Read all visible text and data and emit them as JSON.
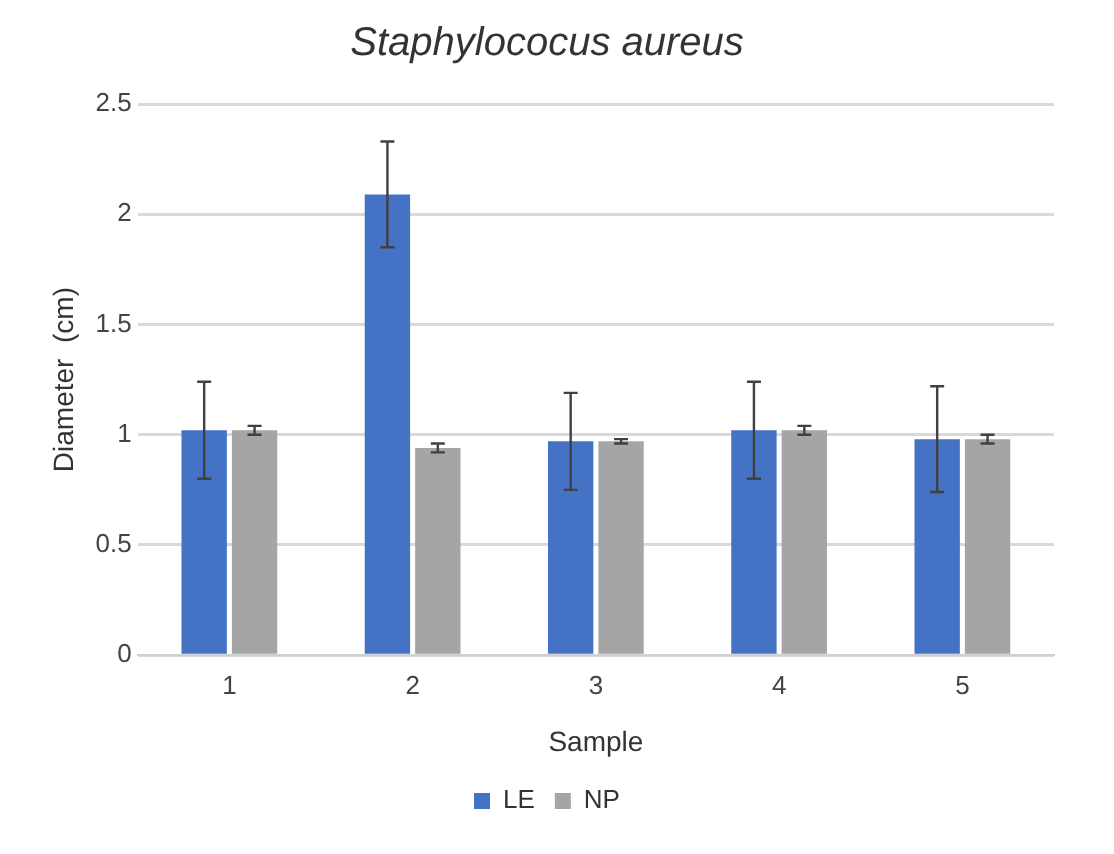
{
  "chart_data": {
    "type": "bar",
    "title": "Staphylococus aureus",
    "xlabel": "Sample",
    "ylabel": "Diameter  (cm)",
    "categories": [
      "1",
      "2",
      "3",
      "4",
      "5"
    ],
    "series": [
      {
        "name": "LE",
        "color": "#4472c4",
        "values": [
          1.02,
          2.09,
          0.97,
          1.02,
          0.98
        ],
        "errors": [
          0.22,
          0.24,
          0.22,
          0.22,
          0.24
        ]
      },
      {
        "name": "NP",
        "color": "#a5a5a5",
        "values": [
          1.02,
          0.94,
          0.97,
          1.02,
          0.98
        ],
        "errors": [
          0.02,
          0.02,
          0.01,
          0.02,
          0.02
        ]
      }
    ],
    "ylim": [
      0,
      2.5
    ],
    "yticks": [
      0,
      0.5,
      1,
      1.5,
      2,
      2.5
    ],
    "grid": "y",
    "legend": "bottom"
  }
}
